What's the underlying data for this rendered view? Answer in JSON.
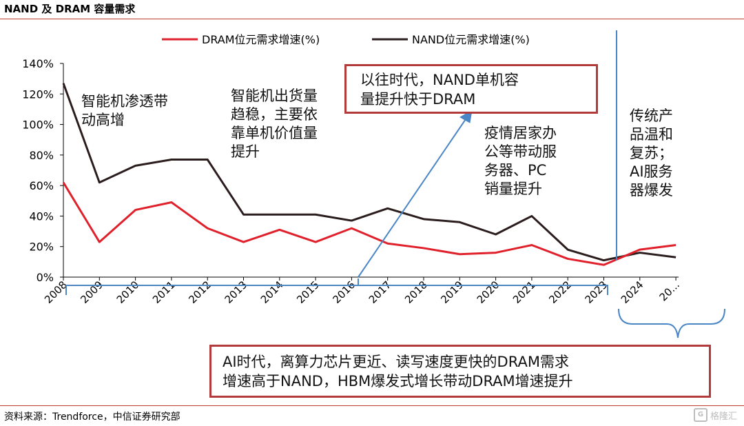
{
  "page": {
    "title": "NAND 及 DRAM 容量需求",
    "source": "资料来源：Trendforce，中信证券研究部",
    "watermark": "格隆汇"
  },
  "annotations": {
    "a1": [
      "智能机渗透带",
      "动高增"
    ],
    "a2": [
      "智能机出货量",
      "趋稳，主要依",
      "靠单机价值量",
      "提升"
    ],
    "a3": [
      "疫情居家办",
      "公等带动服",
      "务器、PC",
      "销量提升"
    ],
    "a4": [
      "传统产",
      "品温和",
      "复苏；",
      "AI服务",
      "器爆发"
    ],
    "box_top": [
      "以往时代，NAND单机容",
      "量提升快于DRAM"
    ],
    "box_bottom": [
      "AI时代，离算力芯片更近、读写速度更快的DRAM需求",
      "增速高于NAND，HBM爆发式增长带动DRAM增速提升"
    ]
  },
  "colors": {
    "dram": "#e0202a",
    "nand": "#2b1d1d",
    "guide": "#4a86c5",
    "accent": "#b23a3a"
  },
  "chart_data": {
    "type": "line",
    "categories": [
      "2008",
      "2009",
      "2010",
      "2011",
      "2012",
      "2013",
      "2014",
      "2015",
      "2016",
      "2017",
      "2018",
      "2019",
      "2020",
      "2021",
      "2022",
      "2023",
      "2024",
      "20..."
    ],
    "series": [
      {
        "name": "DRAM位元需求增速(%)",
        "values": [
          62,
          23,
          44,
          49,
          32,
          23,
          31,
          23,
          32,
          22,
          19,
          15,
          16,
          21,
          12,
          8,
          18,
          21
        ],
        "color": "#e0202a"
      },
      {
        "name": "NAND位元需求增速(%)",
        "values": [
          127,
          62,
          73,
          77,
          77,
          41,
          41,
          41,
          37,
          45,
          38,
          36,
          28,
          40,
          18,
          11,
          16,
          13
        ],
        "color": "#2b1d1d"
      }
    ],
    "ylim": [
      0,
      140
    ],
    "yticks": [
      "0%",
      "20%",
      "40%",
      "60%",
      "80%",
      "100%",
      "120%",
      "140%"
    ],
    "legend": "top",
    "grid": false
  }
}
